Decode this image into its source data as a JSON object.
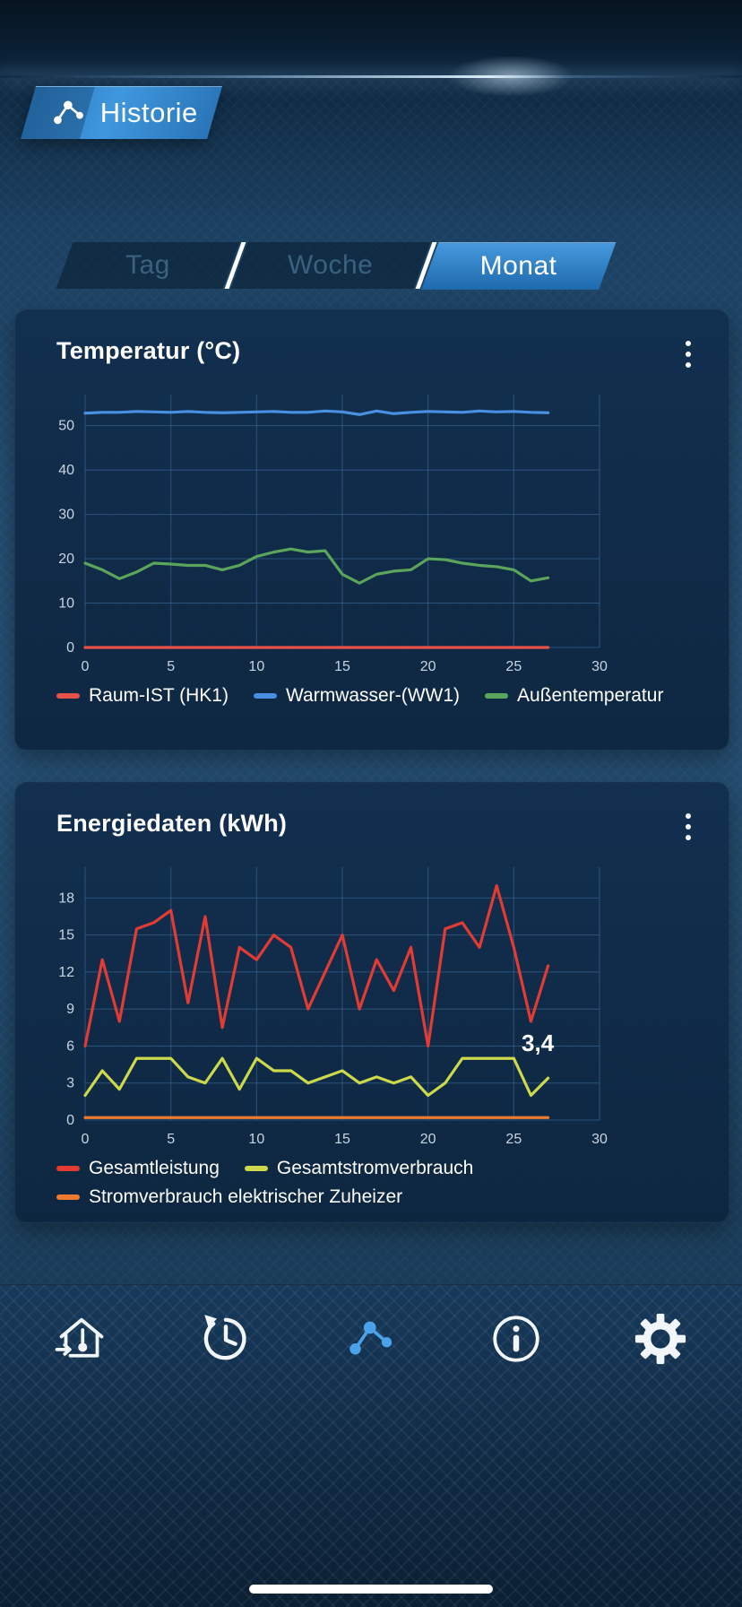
{
  "header": {
    "title": "Historie"
  },
  "tabs": [
    {
      "label": "Tag",
      "selected": false
    },
    {
      "label": "Woche",
      "selected": false
    },
    {
      "label": "Monat",
      "selected": true
    }
  ],
  "colors": {
    "accent": "#3c93d8",
    "card_background": "#122e4e",
    "active_nav": "#4aa3ea",
    "grid": "#3e6d9c"
  },
  "chart_data": [
    {
      "type": "line",
      "title": "Temperatur (°C)",
      "x": [
        0,
        1,
        2,
        3,
        4,
        5,
        6,
        7,
        8,
        9,
        10,
        11,
        12,
        13,
        14,
        15,
        16,
        17,
        18,
        19,
        20,
        21,
        22,
        23,
        24,
        25,
        26,
        27
      ],
      "xlim": [
        0,
        30
      ],
      "ylim": [
        0,
        57
      ],
      "xticks": [
        0,
        5,
        10,
        15,
        20,
        25,
        30
      ],
      "yticks": [
        0,
        10,
        20,
        30,
        40,
        50
      ],
      "grid": true,
      "legend_position": "bottom",
      "series": [
        {
          "name": "Raum-IST (HK1)",
          "color": "#e8504a",
          "values": [
            0,
            0,
            0,
            0,
            0,
            0,
            0,
            0,
            0,
            0,
            0,
            0,
            0,
            0,
            0,
            0,
            0,
            0,
            0,
            0,
            0,
            0,
            0,
            0,
            0,
            0,
            0,
            0
          ]
        },
        {
          "name": "Warmwasser-(WW1)",
          "color": "#4a90e2",
          "values": [
            52.8,
            53,
            53,
            53.2,
            53.1,
            53,
            53.2,
            53,
            52.9,
            53,
            53.1,
            53.2,
            53,
            53,
            53.3,
            53.1,
            52.5,
            53.3,
            52.7,
            53,
            53.2,
            53.1,
            53,
            53.3,
            53.1,
            53.2,
            53,
            52.9
          ]
        },
        {
          "name": "Außentemperatur",
          "color": "#5ba55b",
          "values": [
            19,
            17.5,
            15.5,
            17,
            19,
            18.8,
            18.5,
            18.5,
            17.5,
            18.5,
            20.5,
            21.5,
            22.2,
            21.5,
            21.8,
            16.5,
            14.5,
            16.5,
            17.2,
            17.5,
            20,
            19.8,
            19,
            18.5,
            18.2,
            17.5,
            15,
            15.7
          ]
        }
      ]
    },
    {
      "type": "line",
      "title": "Energiedaten (kWh)",
      "x": [
        0,
        1,
        2,
        3,
        4,
        5,
        6,
        7,
        8,
        9,
        10,
        11,
        12,
        13,
        14,
        15,
        16,
        17,
        18,
        19,
        20,
        21,
        22,
        23,
        24,
        25,
        26,
        27
      ],
      "xlim": [
        0,
        30
      ],
      "ylim": [
        0,
        20.5
      ],
      "xticks": [
        0,
        5,
        10,
        15,
        20,
        25,
        30
      ],
      "yticks": [
        0,
        3,
        6,
        9,
        12,
        15,
        18
      ],
      "grid": true,
      "legend_position": "bottom",
      "annotation": {
        "text": "3,4",
        "x": 26.4,
        "y": 5.6
      },
      "series": [
        {
          "name": "Gesamtleistung",
          "color": "#e23b33",
          "values": [
            6,
            13,
            8,
            15.5,
            16,
            17,
            9.5,
            16.5,
            7.5,
            14,
            13,
            15,
            14,
            9,
            12,
            15,
            9,
            13,
            10.5,
            14,
            6,
            15.5,
            16,
            14,
            19,
            14,
            8,
            12.5
          ]
        },
        {
          "name": "Gesamtstromverbrauch",
          "color": "#cdd94a",
          "values": [
            2,
            4,
            2.5,
            5,
            5,
            5,
            3.5,
            3,
            5,
            2.5,
            5,
            4,
            4,
            3,
            3.5,
            4,
            3,
            3.5,
            3,
            3.5,
            2,
            3,
            5,
            5,
            5,
            5,
            2,
            3.4
          ]
        },
        {
          "name": "Stromverbrauch elektrischer Zuheizer",
          "color": "#ef7a2e",
          "values": [
            0.2,
            0.2,
            0.2,
            0.2,
            0.2,
            0.2,
            0.2,
            0.2,
            0.2,
            0.2,
            0.2,
            0.2,
            0.2,
            0.2,
            0.2,
            0.2,
            0.2,
            0.2,
            0.2,
            0.2,
            0.2,
            0.2,
            0.2,
            0.2,
            0.2,
            0.2,
            0.2,
            0.2
          ]
        }
      ]
    }
  ],
  "nav": {
    "items": [
      {
        "name": "indoor-climate",
        "active": false
      },
      {
        "name": "history",
        "active": false
      },
      {
        "name": "statistics",
        "active": true
      },
      {
        "name": "info",
        "active": false
      },
      {
        "name": "settings",
        "active": false
      }
    ]
  }
}
